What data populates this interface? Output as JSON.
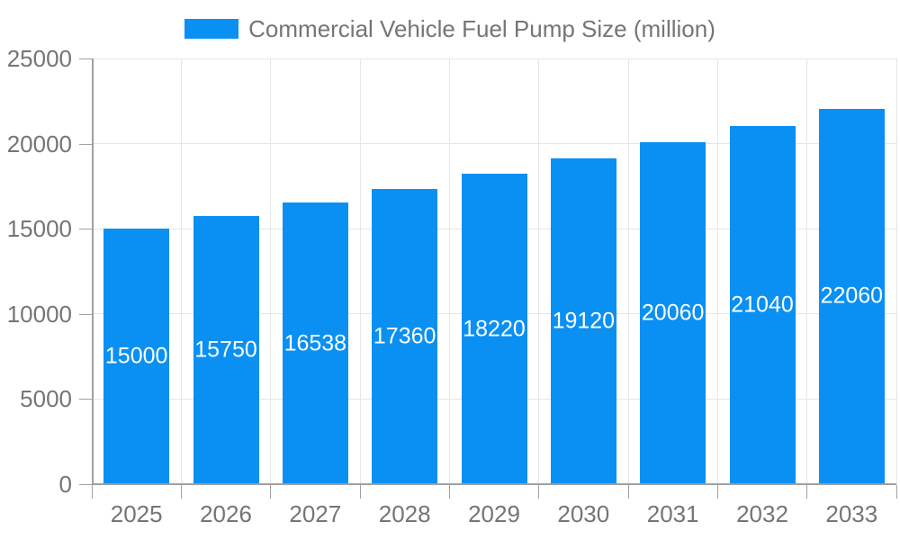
{
  "legend": {
    "label": "Commercial Vehicle Fuel Pump Size (million)"
  },
  "chart_data": {
    "type": "bar",
    "title": "Commercial Vehicle Fuel Pump Size (million)",
    "categories": [
      "2025",
      "2026",
      "2027",
      "2028",
      "2029",
      "2030",
      "2031",
      "2032",
      "2033"
    ],
    "values": [
      15000,
      15750,
      16538,
      17360,
      18220,
      19120,
      20060,
      21040,
      22060
    ],
    "series": [
      {
        "name": "Commercial Vehicle Fuel Pump Size (million)",
        "values": [
          15000,
          15750,
          16538,
          17360,
          18220,
          19120,
          20060,
          21040,
          22060
        ]
      }
    ],
    "xlabel": "",
    "ylabel": "",
    "ylim": [
      0,
      25000
    ],
    "yticks": [
      0,
      5000,
      10000,
      15000,
      20000,
      25000
    ],
    "grid": true,
    "legend_position": "top-center",
    "value_labels": "inside-center"
  },
  "colors": {
    "background": "#ffffff",
    "bar": "#0a90f2",
    "grid": "#e6e6e6",
    "axis": "#a0a0a0",
    "text": "#757575",
    "value_text": "#ffffff"
  }
}
